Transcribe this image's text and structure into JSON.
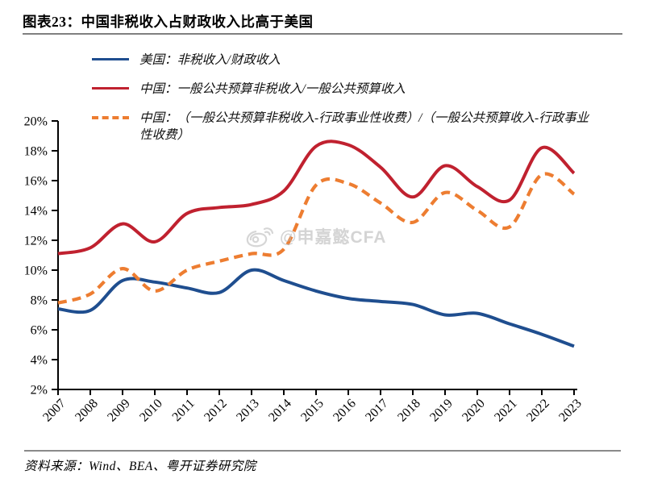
{
  "title": "图表23：中国非税收入占财政收入比高于美国",
  "legend": [
    {
      "label": "美国：非税收入/财政收入",
      "color": "#1f4e8f",
      "style": "solid"
    },
    {
      "label": "中国：一般公共预算非税收入/一般公共预算收入",
      "color": "#c0212f",
      "style": "solid"
    },
    {
      "label": "中国：（一般公共预算非税收入-行政事业性收费）/（一般公共预算收入-行政事业性收费）",
      "color": "#ed7d31",
      "style": "dashed"
    }
  ],
  "watermark": "@申嘉懿CFA",
  "source": "资料来源：Wind、BEA、粤开证券研究院",
  "chart_data": {
    "type": "line",
    "title": "图表23：中国非税收入占财政收入比高于美国",
    "categories": [
      "2007",
      "2008",
      "2009",
      "2010",
      "2011",
      "2012",
      "2013",
      "2014",
      "2015",
      "2016",
      "2017",
      "2018",
      "2019",
      "2020",
      "2021",
      "2022",
      "2023"
    ],
    "series": [
      {
        "key": "us-nontax-share",
        "name": "美国：非税收入/财政收入",
        "color": "#1f4e8f",
        "style": "solid",
        "values": [
          7.4,
          7.3,
          9.3,
          9.2,
          8.8,
          8.5,
          10.0,
          9.3,
          8.6,
          8.1,
          7.9,
          7.7,
          7.0,
          7.1,
          6.4,
          5.7,
          4.9
        ]
      },
      {
        "key": "china-nontax-share",
        "name": "中国：一般公共预算非税收入/一般公共预算收入",
        "color": "#c0212f",
        "style": "solid",
        "values": [
          11.1,
          11.5,
          13.1,
          11.9,
          13.8,
          14.2,
          14.4,
          15.3,
          18.3,
          18.4,
          16.9,
          14.9,
          17.0,
          15.6,
          14.7,
          18.2,
          16.5
        ]
      },
      {
        "key": "china-nontax-share-ex-fees",
        "name": "中国：（一般公共预算非税收入-行政事业性收费）/（一般公共预算收入-行政事业性收费）",
        "color": "#ed7d31",
        "style": "dashed",
        "values": [
          7.8,
          8.4,
          10.1,
          8.6,
          10.0,
          10.6,
          11.1,
          11.4,
          15.7,
          15.8,
          14.5,
          13.2,
          15.2,
          14.0,
          12.9,
          16.4,
          15.1
        ]
      }
    ],
    "xlabel": "",
    "ylabel": "",
    "ylim": [
      2,
      20
    ],
    "ytick_step": 2,
    "y_ticks": [
      "2%",
      "4%",
      "6%",
      "8%",
      "10%",
      "12%",
      "14%",
      "16%",
      "18%",
      "20%"
    ],
    "ytick_format": "percent",
    "grid": false,
    "legend_position": "top-left",
    "smoothed_lines": true
  }
}
